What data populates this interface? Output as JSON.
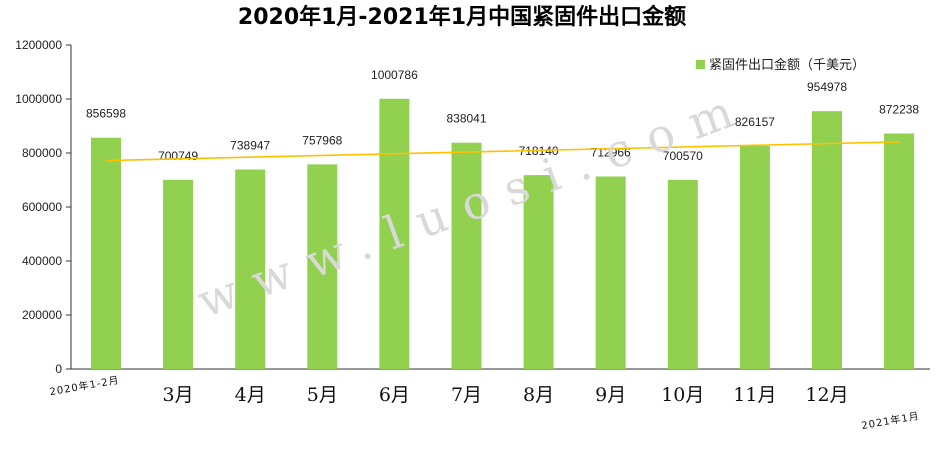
{
  "chart_data": {
    "type": "bar",
    "title": "2020年1月-2021年1月中国紧固件出口金额",
    "categories": [
      "2020年1-2月",
      "3月",
      "4月",
      "5月",
      "6月",
      "7月",
      "8月",
      "9月",
      "10月",
      "11月",
      "12月",
      "2021年1月"
    ],
    "series": [
      {
        "name": "紧固件出口金额（千美元）",
        "values": [
          856598,
          700749,
          738947,
          757968,
          1000786,
          838041,
          718140,
          712966,
          700570,
          826157,
          954978,
          872238
        ],
        "color": "#92d050"
      }
    ],
    "trendline": {
      "type": "linear",
      "color": "#ffc000"
    },
    "ylim": [
      0,
      1200000
    ],
    "yticks": [
      0,
      200000,
      400000,
      600000,
      800000,
      1000000,
      1200000
    ],
    "grid": false,
    "legend_position": "top-right",
    "xlabel": "",
    "ylabel": ""
  },
  "watermark": "www.luosi.com"
}
